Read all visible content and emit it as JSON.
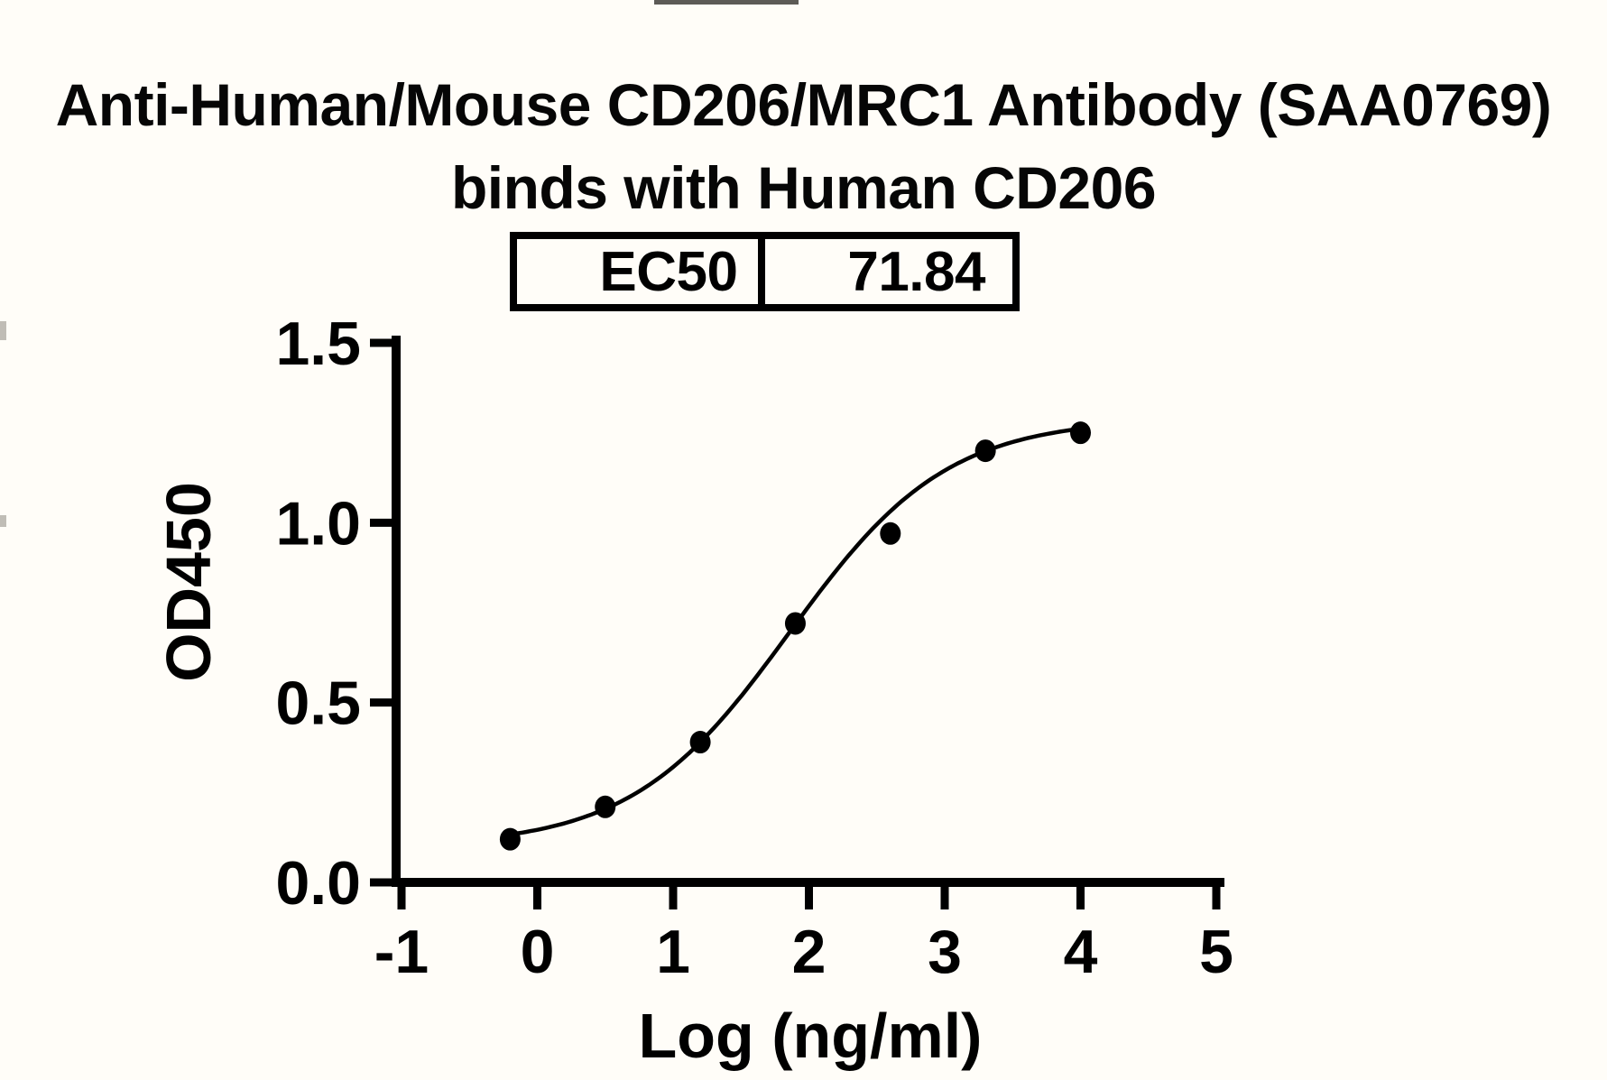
{
  "title": {
    "line1": "Anti-Human/Mouse CD206/MRC1 Antibody (SAA0769)",
    "line2": "binds with Human CD206"
  },
  "ec50_table": {
    "label": "EC50",
    "value": "71.84"
  },
  "chart_data": {
    "type": "scatter",
    "title": "Anti-Human/Mouse CD206/MRC1 Antibody (SAA0769) binds with Human CD206",
    "xlabel": "Log (ng/ml)",
    "ylabel": "OD450",
    "xlim": [
      -1,
      5
    ],
    "ylim": [
      0,
      1.5
    ],
    "x_ticks": [
      -1,
      0,
      1,
      2,
      3,
      4,
      5
    ],
    "y_ticks": [
      0,
      0.5,
      1.0,
      1.5
    ],
    "x_tick_labels": [
      "-1",
      "0",
      "1",
      "2",
      "3",
      "4",
      "5"
    ],
    "y_tick_labels": [
      "0.0",
      "0.5",
      "1.0",
      "1.5"
    ],
    "grid": false,
    "legend": null,
    "points": {
      "x": [
        -0.2,
        0.5,
        1.2,
        1.9,
        2.6,
        3.3,
        4.0
      ],
      "y": [
        0.12,
        0.21,
        0.39,
        0.72,
        0.97,
        1.2,
        1.25
      ]
    },
    "fit_curve": {
      "model": "4PL-sigmoid",
      "bottom": 0.1,
      "top": 1.29,
      "hill": 0.75,
      "log_ec50": 1.8565,
      "x_range": [
        -0.2,
        4.0
      ]
    },
    "ec50": 71.84,
    "colors": {
      "points": "#000000",
      "curve": "#000000",
      "axis": "#000000",
      "background": "#fffdf8"
    }
  }
}
